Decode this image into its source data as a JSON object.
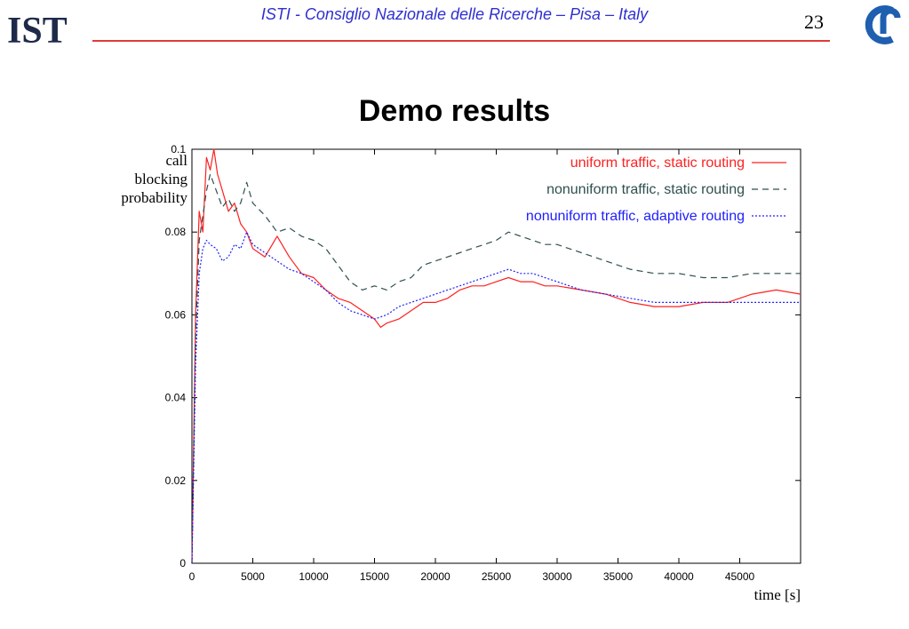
{
  "header": {
    "institution": "ISTI - Consiglio Nazionale delle Ricerche – Pisa – Italy",
    "page_number": "23",
    "logo_left_text": "ISTI"
  },
  "slide": {
    "title": "Demo results"
  },
  "colors": {
    "header_text": "#2f2fd0",
    "rule": "#e03a3a",
    "logo_blue": "#1f5fb0",
    "series_red": "#ff2020",
    "series_gray": "#2f4f4f",
    "series_blue": "#2020ff"
  },
  "chart_data": {
    "type": "line",
    "ylabel_lines": [
      "call",
      "blocking",
      "probability"
    ],
    "xlabel": "time [s]",
    "xlim": [
      0,
      50000
    ],
    "ylim": [
      0,
      0.1
    ],
    "x_ticks": [
      0,
      5000,
      10000,
      15000,
      20000,
      25000,
      30000,
      35000,
      40000,
      45000
    ],
    "x_tick_labels": [
      "0",
      "5000",
      "10000",
      "15000",
      "20000",
      "25000",
      "30000",
      "35000",
      "40000",
      "45000"
    ],
    "y_ticks": [
      0,
      0.02,
      0.04,
      0.06,
      0.08,
      0.1
    ],
    "y_tick_labels": [
      "0",
      "0.02",
      "0.04",
      "0.06",
      "0.08",
      "0.1"
    ],
    "grid": false,
    "legend_position": "top-right",
    "series": [
      {
        "name": "uniform traffic, static routing",
        "color": "#ff2020",
        "dash": "solid",
        "x": [
          0,
          300,
          600,
          900,
          1200,
          1500,
          1800,
          2100,
          2500,
          3000,
          3500,
          4000,
          4500,
          5000,
          6000,
          7000,
          8000,
          9000,
          10000,
          11000,
          12000,
          13000,
          14000,
          15000,
          15500,
          16000,
          17000,
          18000,
          19000,
          20000,
          21000,
          22000,
          23000,
          24000,
          25000,
          26000,
          27000,
          28000,
          29000,
          30000,
          32000,
          34000,
          36000,
          38000,
          40000,
          42000,
          44000,
          46000,
          48000,
          50000
        ],
        "y": [
          0,
          0.06,
          0.085,
          0.08,
          0.098,
          0.095,
          0.1,
          0.094,
          0.09,
          0.085,
          0.087,
          0.082,
          0.08,
          0.076,
          0.074,
          0.079,
          0.074,
          0.07,
          0.069,
          0.066,
          0.064,
          0.063,
          0.061,
          0.059,
          0.057,
          0.058,
          0.059,
          0.061,
          0.063,
          0.063,
          0.064,
          0.066,
          0.067,
          0.067,
          0.068,
          0.069,
          0.068,
          0.068,
          0.067,
          0.067,
          0.066,
          0.065,
          0.063,
          0.062,
          0.062,
          0.063,
          0.063,
          0.065,
          0.066,
          0.065
        ]
      },
      {
        "name": "nonuniform traffic, static routing",
        "color": "#2f4f4f",
        "dash": "dashed",
        "x": [
          0,
          300,
          600,
          900,
          1200,
          1500,
          2000,
          2500,
          3000,
          3500,
          4000,
          4500,
          5000,
          6000,
          7000,
          8000,
          9000,
          10000,
          11000,
          12000,
          13000,
          14000,
          15000,
          16000,
          17000,
          18000,
          19000,
          20000,
          21000,
          22000,
          23000,
          24000,
          25000,
          26000,
          27000,
          28000,
          29000,
          30000,
          32000,
          34000,
          36000,
          38000,
          40000,
          42000,
          44000,
          46000,
          48000,
          50000
        ],
        "y": [
          0,
          0.055,
          0.078,
          0.084,
          0.09,
          0.094,
          0.09,
          0.086,
          0.088,
          0.085,
          0.087,
          0.092,
          0.087,
          0.084,
          0.08,
          0.081,
          0.079,
          0.078,
          0.076,
          0.072,
          0.068,
          0.066,
          0.067,
          0.066,
          0.068,
          0.069,
          0.072,
          0.073,
          0.074,
          0.075,
          0.076,
          0.077,
          0.078,
          0.08,
          0.079,
          0.078,
          0.077,
          0.077,
          0.075,
          0.073,
          0.071,
          0.07,
          0.07,
          0.069,
          0.069,
          0.07,
          0.07,
          0.07
        ]
      },
      {
        "name": "nonuniform traffic, adaptive routing",
        "color": "#2020ff",
        "dash": "dotted",
        "x": [
          0,
          300,
          600,
          900,
          1200,
          1500,
          2000,
          2500,
          3000,
          3500,
          4000,
          4500,
          5000,
          6000,
          7000,
          8000,
          9000,
          10000,
          11000,
          12000,
          13000,
          14000,
          15000,
          16000,
          17000,
          18000,
          19000,
          20000,
          21000,
          22000,
          23000,
          24000,
          25000,
          26000,
          27000,
          28000,
          29000,
          30000,
          32000,
          34000,
          36000,
          38000,
          40000,
          42000,
          44000,
          46000,
          48000,
          50000
        ],
        "y": [
          0,
          0.048,
          0.07,
          0.076,
          0.078,
          0.077,
          0.076,
          0.073,
          0.074,
          0.077,
          0.076,
          0.08,
          0.077,
          0.075,
          0.073,
          0.071,
          0.07,
          0.068,
          0.066,
          0.063,
          0.061,
          0.06,
          0.059,
          0.06,
          0.062,
          0.063,
          0.064,
          0.065,
          0.066,
          0.067,
          0.068,
          0.069,
          0.07,
          0.071,
          0.07,
          0.07,
          0.069,
          0.068,
          0.066,
          0.065,
          0.064,
          0.063,
          0.063,
          0.063,
          0.063,
          0.063,
          0.063,
          0.063
        ]
      }
    ]
  }
}
